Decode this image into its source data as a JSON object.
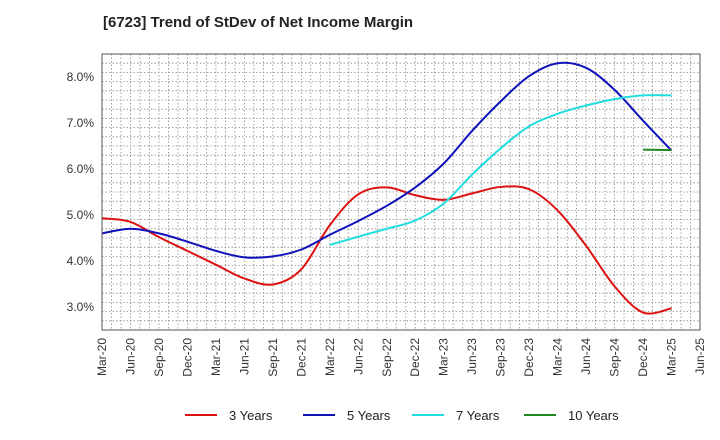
{
  "title": "[6723]  Trend of StDev of Net Income Margin",
  "chart_data": {
    "type": "line",
    "title": "[6723]  Trend of StDev of Net Income Margin",
    "xlabel": "",
    "ylabel": "",
    "x_ticks": [
      "Mar-20",
      "Jun-20",
      "Sep-20",
      "Dec-20",
      "Mar-21",
      "Jun-21",
      "Sep-21",
      "Dec-21",
      "Mar-22",
      "Jun-22",
      "Sep-22",
      "Dec-22",
      "Mar-23",
      "Jun-23",
      "Sep-23",
      "Dec-23",
      "Mar-24",
      "Jun-24",
      "Sep-24",
      "Dec-24",
      "Mar-25",
      "Jun-25"
    ],
    "y_ticks": [
      "3.0%",
      "4.0%",
      "5.0%",
      "6.0%",
      "7.0%",
      "8.0%"
    ],
    "ylim": [
      2.5,
      8.5
    ],
    "grid": true,
    "legend_position": "bottom",
    "series": [
      {
        "name": "3 Years",
        "color": "#dd1111",
        "x": [
          "Mar-20",
          "Jun-20",
          "Sep-20",
          "Dec-20",
          "Mar-21",
          "Jun-21",
          "Sep-21",
          "Dec-21",
          "Mar-22",
          "Jun-22",
          "Sep-22",
          "Dec-22",
          "Mar-23",
          "Jun-23",
          "Sep-23",
          "Dec-23",
          "Mar-24",
          "Jun-24",
          "Sep-24",
          "Dec-24",
          "Mar-25"
        ],
        "values": [
          4.93,
          4.85,
          4.52,
          4.22,
          3.92,
          3.62,
          3.49,
          3.82,
          4.78,
          5.45,
          5.6,
          5.43,
          5.33,
          5.47,
          5.61,
          5.56,
          5.1,
          4.33,
          3.45,
          2.88,
          2.97
        ]
      },
      {
        "name": "5 Years",
        "color": "#1111bb",
        "x": [
          "Mar-20",
          "Jun-20",
          "Sep-20",
          "Dec-20",
          "Mar-21",
          "Jun-21",
          "Sep-21",
          "Dec-21",
          "Mar-22",
          "Jun-22",
          "Sep-22",
          "Dec-22",
          "Mar-23",
          "Jun-23",
          "Sep-23",
          "Dec-23",
          "Mar-24",
          "Jun-24",
          "Sep-24",
          "Dec-24",
          "Mar-25"
        ],
        "values": [
          4.6,
          4.7,
          4.6,
          4.42,
          4.22,
          4.08,
          4.1,
          4.25,
          4.57,
          4.87,
          5.2,
          5.6,
          6.12,
          6.83,
          7.47,
          8.02,
          8.3,
          8.2,
          7.72,
          7.05,
          6.4
        ]
      },
      {
        "name": "7 Years",
        "color": "#22dddd",
        "x": [
          "Mar-22",
          "Jun-22",
          "Sep-22",
          "Dec-22",
          "Mar-23",
          "Jun-23",
          "Sep-23",
          "Dec-23",
          "Mar-24",
          "Jun-24",
          "Sep-24",
          "Dec-24",
          "Mar-25"
        ],
        "values": [
          4.35,
          4.53,
          4.7,
          4.88,
          5.25,
          5.88,
          6.45,
          6.93,
          7.2,
          7.38,
          7.52,
          7.6,
          7.6
        ]
      },
      {
        "name": "10 Years",
        "color": "#228822",
        "x": [
          "Dec-24",
          "Mar-25"
        ],
        "values": [
          6.42,
          6.41
        ]
      }
    ]
  }
}
